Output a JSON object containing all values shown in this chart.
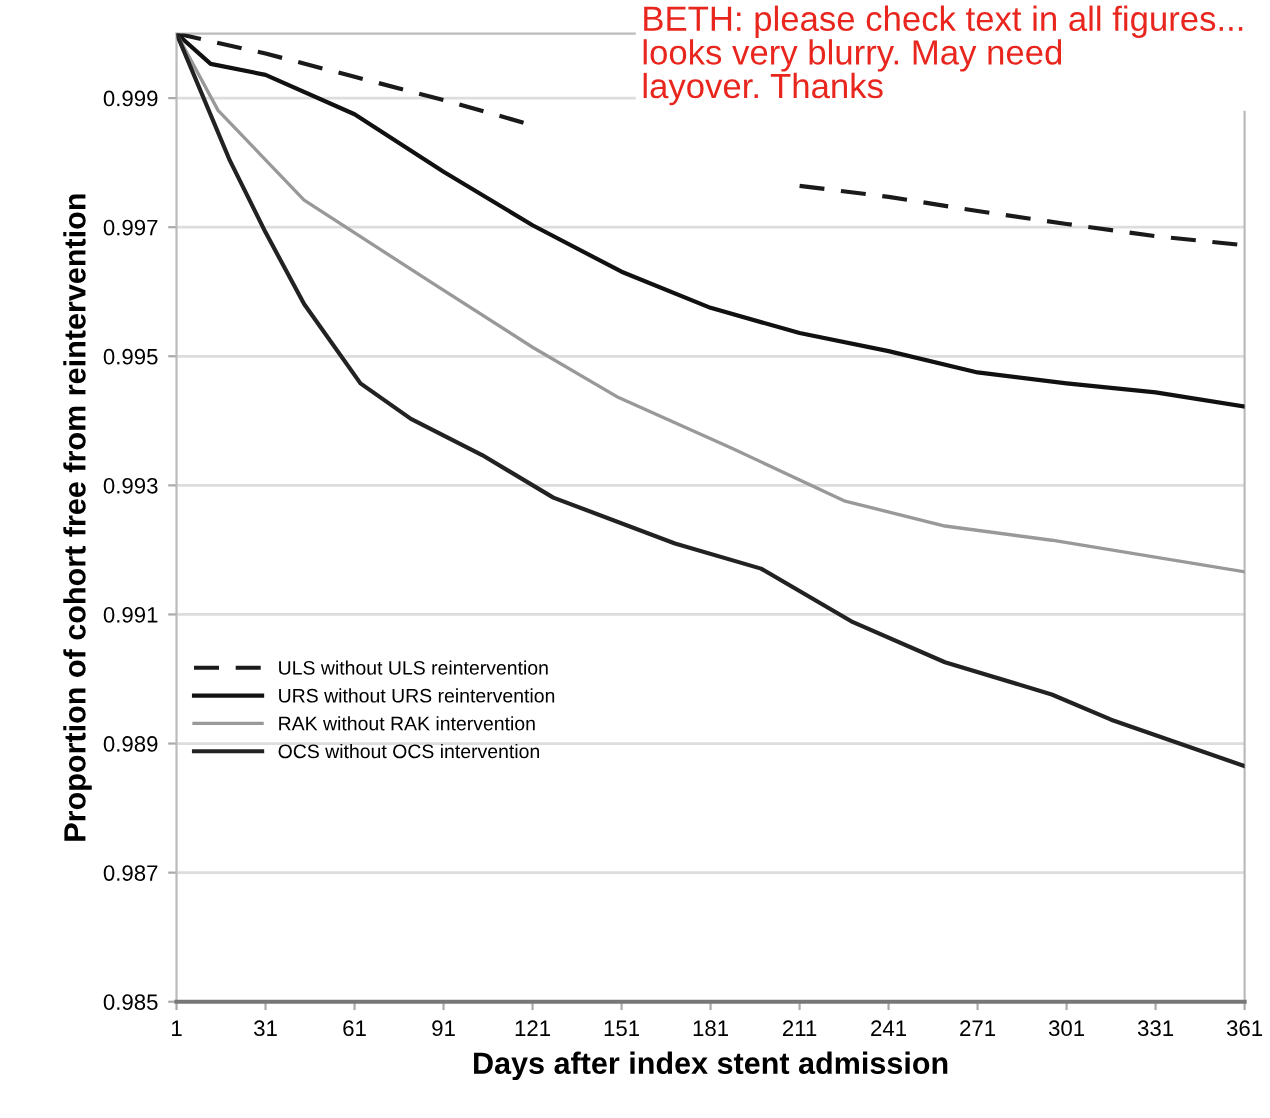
{
  "chart_data": {
    "type": "line",
    "xlabel": "Days after index stent admission",
    "ylabel": "Proportion of cohort free from reintervention",
    "annotations": [
      "BETH: please check text in all figures...\nlooks very blurry. May need\nlayover. Thanks"
    ],
    "xlim": [
      1,
      361
    ],
    "xticks": [
      1,
      31,
      61,
      91,
      121,
      151,
      181,
      211,
      241,
      271,
      301,
      331,
      361
    ],
    "ylim": [
      0.985,
      1.0
    ],
    "yticks": [
      0.985,
      0.987,
      0.989,
      0.991,
      0.993,
      0.995,
      0.997,
      0.999
    ],
    "grid": "y",
    "legend": "left",
    "marker": "none",
    "series": [
      {
        "name": "ULS without ULS reintervention",
        "color": "#1a1a1a",
        "line_style": "dashed",
        "x": [
          1,
          31,
          61,
          91,
          121,
          151,
          181,
          211,
          241,
          271,
          301,
          331,
          361
        ],
        "values": [
          1.0,
          0.99969,
          0.99933,
          0.99897,
          0.99858,
          null,
          null,
          0.99764,
          0.99747,
          0.99725,
          0.99705,
          0.99686,
          0.99672
        ]
      },
      {
        "name": "URS without URS reintervention",
        "color": "#111111",
        "line_style": "solid",
        "x": [
          1,
          12.5,
          31,
          61,
          91,
          121,
          151,
          181,
          211,
          241,
          271,
          301,
          331,
          361
        ],
        "values": [
          1.0,
          0.99953,
          0.99936,
          0.99875,
          0.99786,
          0.99703,
          0.99631,
          0.99575,
          0.99536,
          0.99508,
          0.99475,
          0.99458,
          0.99444,
          0.99422
        ]
      },
      {
        "name": "RAK without RAK intervention",
        "color": "#999999",
        "line_style": "solid",
        "x": [
          1,
          15,
          44,
          87,
          121,
          150,
          188,
          226,
          260,
          296,
          361
        ],
        "values": [
          1.0,
          0.99881,
          0.99742,
          0.99614,
          0.99514,
          0.99436,
          0.99358,
          0.99276,
          0.99237,
          0.99215,
          0.99166
        ]
      },
      {
        "name": "OCS without OCS intervention",
        "color": "#222222",
        "line_style": "solid",
        "x": [
          1,
          19,
          31,
          44,
          63,
          80,
          104,
          128,
          169,
          198,
          229,
          260,
          296,
          316,
          361
        ],
        "values": [
          1.0,
          0.99803,
          0.99692,
          0.99581,
          0.99458,
          0.99403,
          0.99347,
          0.99281,
          0.9921,
          0.99171,
          0.99088,
          0.99026,
          0.98976,
          0.98937,
          0.98865
        ]
      }
    ]
  }
}
